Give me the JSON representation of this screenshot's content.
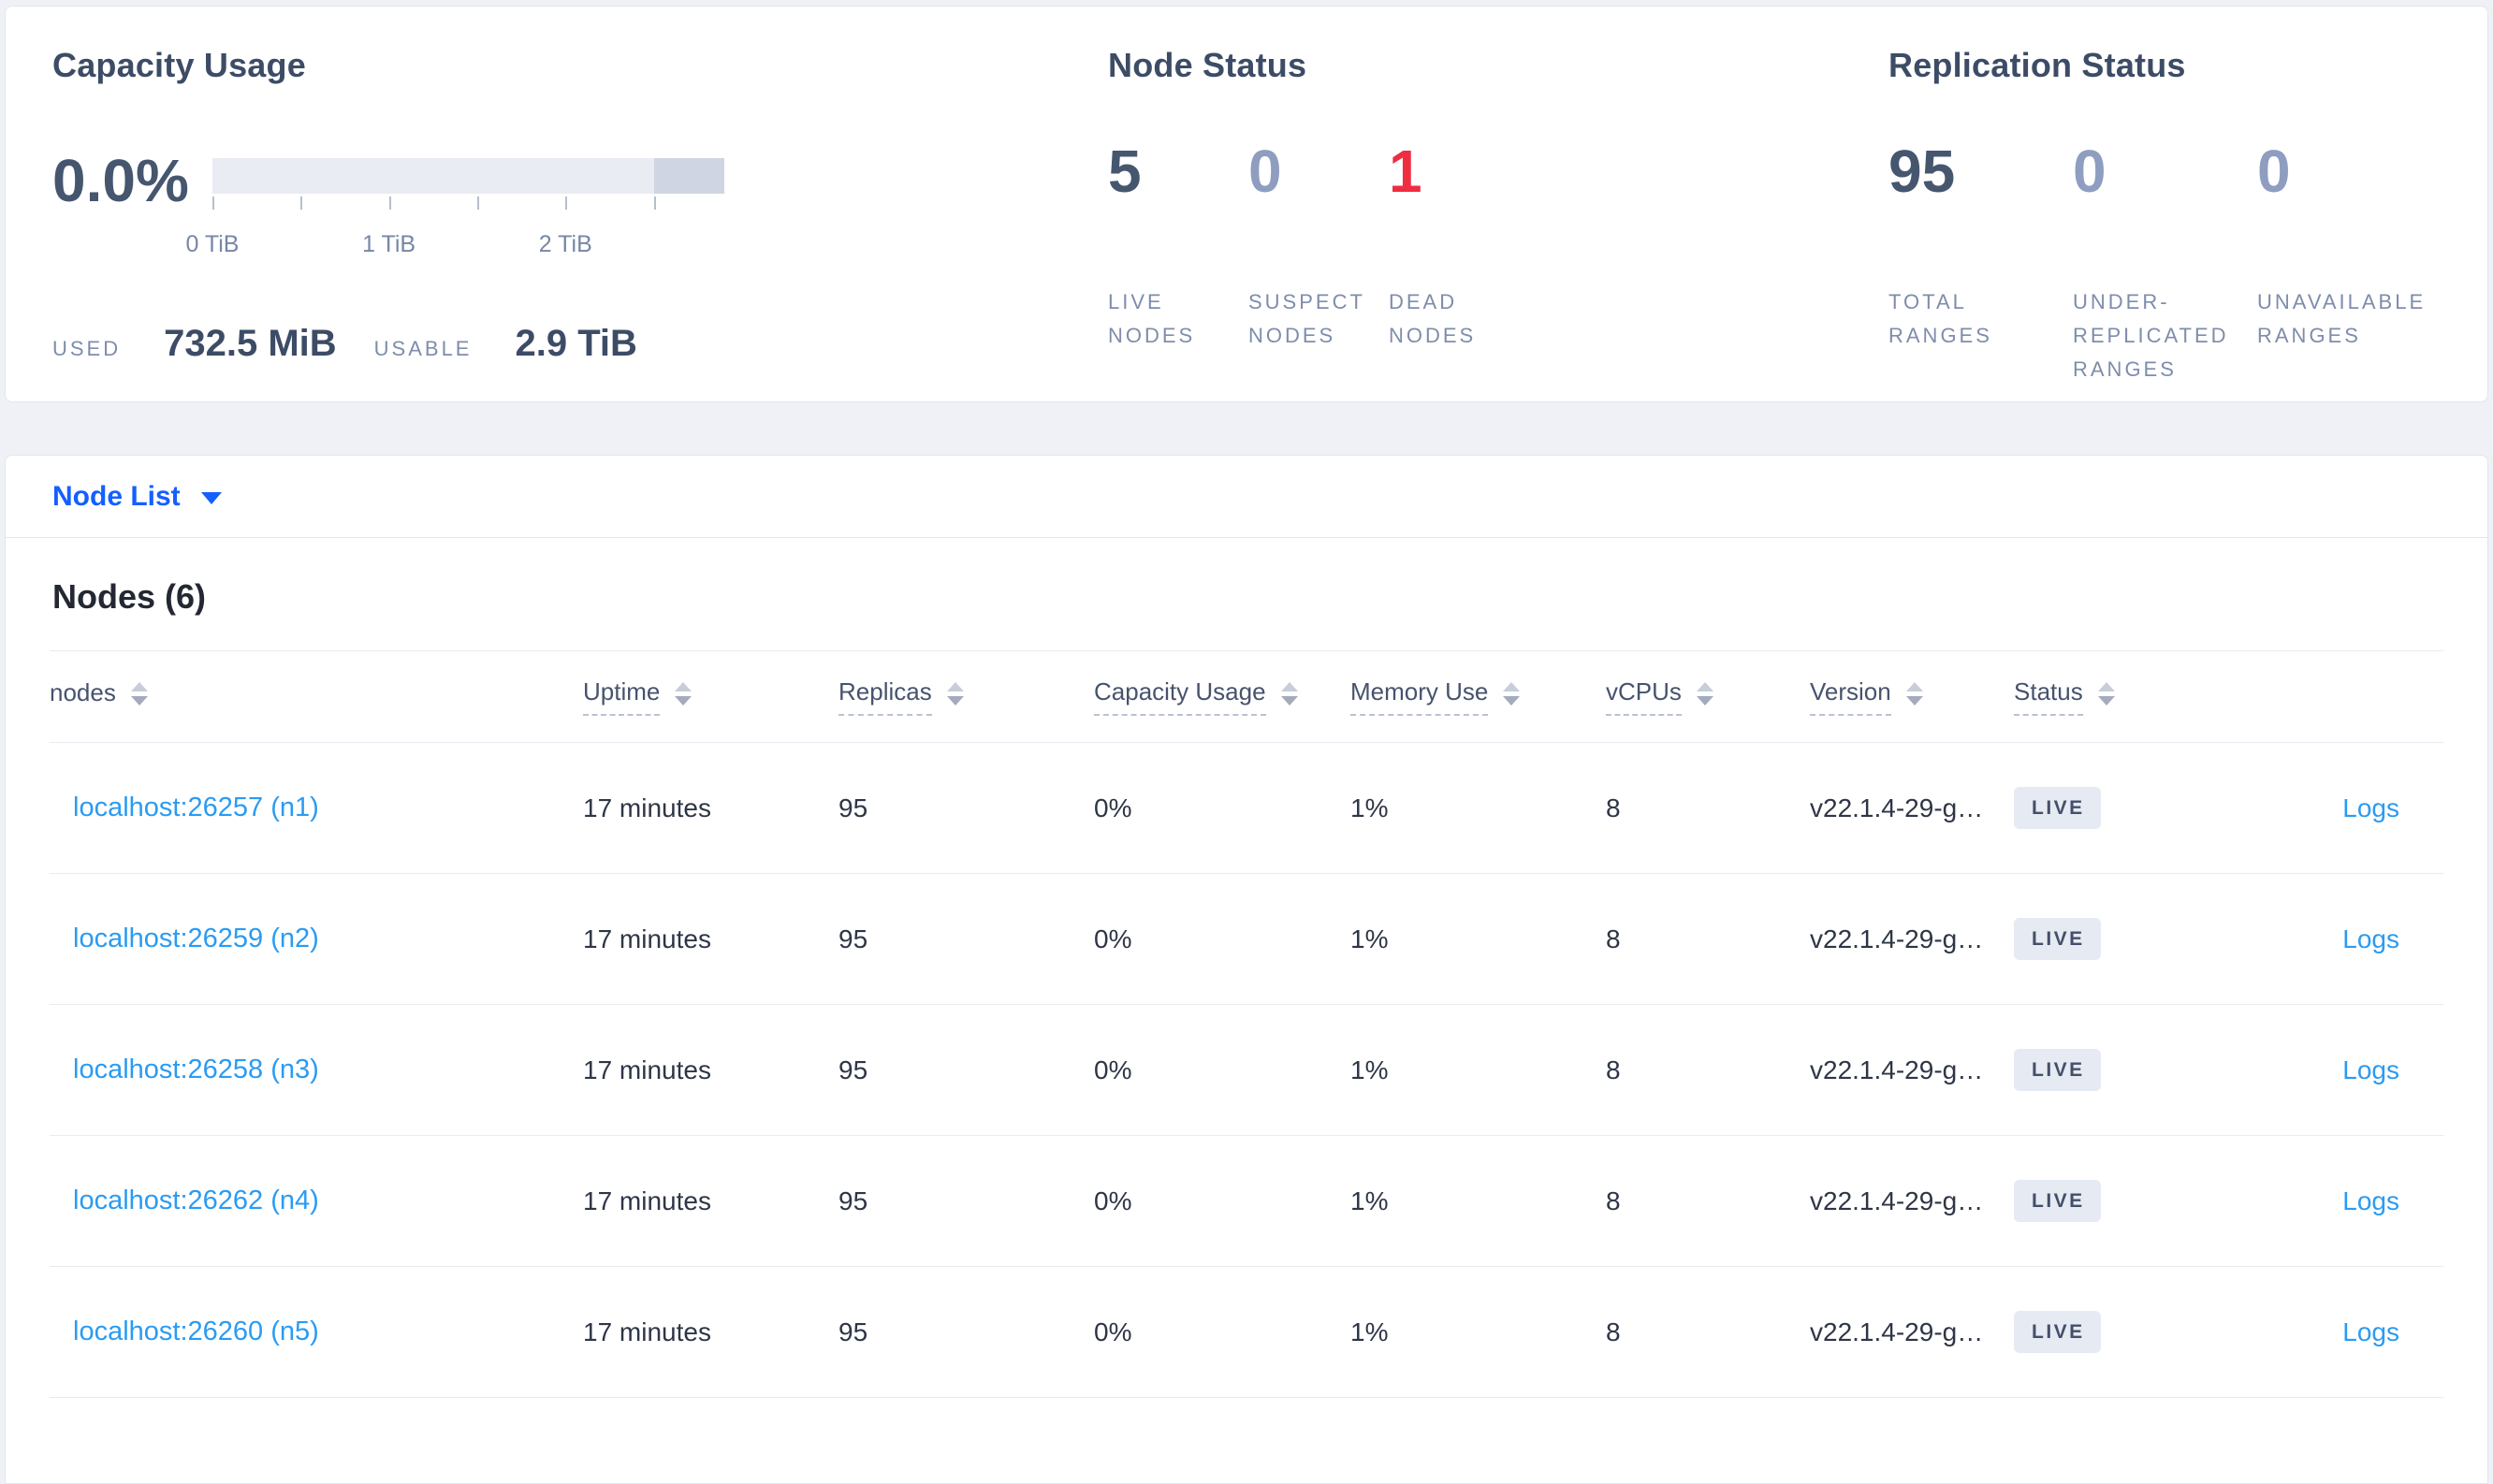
{
  "summary": {
    "capacity": {
      "title": "Capacity Usage",
      "percent": "0.0%",
      "used_label": "USED",
      "used_value": "732.5 MiB",
      "usable_label": "USABLE",
      "usable_value": "2.9 TiB",
      "axis_ticks": [
        {
          "label": "0 TiB",
          "pos": "0%"
        },
        {
          "label": "",
          "pos": "17.24%"
        },
        {
          "label": "1 TiB",
          "pos": "34.48%"
        },
        {
          "label": "",
          "pos": "51.72%"
        },
        {
          "label": "2 TiB",
          "pos": "68.97%"
        },
        {
          "label": "",
          "pos": "86.21%"
        }
      ],
      "bar": {
        "reserved_segment_width": "13.79%",
        "track_color": "#e9ecf3",
        "reserved_color": "#cfd5e2"
      }
    },
    "node_status": {
      "title": "Node Status",
      "stats": [
        {
          "value": "5",
          "label": "LIVE NODES",
          "tone": "dark"
        },
        {
          "value": "0",
          "label": "SUSPECT NODES",
          "tone": "muted"
        },
        {
          "value": "1",
          "label": "DEAD NODES",
          "tone": "danger"
        }
      ]
    },
    "replication": {
      "title": "Replication Status",
      "stats": [
        {
          "value": "95",
          "label": "TOTAL RANGES",
          "tone": "dark"
        },
        {
          "value": "0",
          "label": "UNDER-REPLICATED RANGES",
          "tone": "muted"
        },
        {
          "value": "0",
          "label": "UNAVAILABLE RANGES",
          "tone": "muted"
        }
      ]
    }
  },
  "view_selector": {
    "label": "Node List"
  },
  "nodes_section": {
    "heading": "Nodes (6)",
    "columns": [
      {
        "label": "nodes",
        "underline": false
      },
      {
        "label": "Uptime",
        "underline": true
      },
      {
        "label": "Replicas",
        "underline": true
      },
      {
        "label": "Capacity Usage",
        "underline": true
      },
      {
        "label": "Memory Use",
        "underline": true
      },
      {
        "label": "vCPUs",
        "underline": true
      },
      {
        "label": "Version",
        "underline": true
      },
      {
        "label": "Status",
        "underline": true
      },
      {
        "label": "",
        "underline": false,
        "empty": true
      }
    ],
    "rows": [
      {
        "node": "localhost:26257 (n1)",
        "uptime": "17 minutes",
        "replicas": "95",
        "capacity": "0%",
        "memory": "1%",
        "vcpus": "8",
        "version": "v22.1.4-29-g…",
        "status": "LIVE",
        "logs": "Logs"
      },
      {
        "node": "localhost:26259 (n2)",
        "uptime": "17 minutes",
        "replicas": "95",
        "capacity": "0%",
        "memory": "1%",
        "vcpus": "8",
        "version": "v22.1.4-29-g…",
        "status": "LIVE",
        "logs": "Logs"
      },
      {
        "node": "localhost:26258 (n3)",
        "uptime": "17 minutes",
        "replicas": "95",
        "capacity": "0%",
        "memory": "1%",
        "vcpus": "8",
        "version": "v22.1.4-29-g…",
        "status": "LIVE",
        "logs": "Logs"
      },
      {
        "node": "localhost:26262 (n4)",
        "uptime": "17 minutes",
        "replicas": "95",
        "capacity": "0%",
        "memory": "1%",
        "vcpus": "8",
        "version": "v22.1.4-29-g…",
        "status": "LIVE",
        "logs": "Logs"
      },
      {
        "node": "localhost:26260 (n5)",
        "uptime": "17 minutes",
        "replicas": "95",
        "capacity": "0%",
        "memory": "1%",
        "vcpus": "8",
        "version": "v22.1.4-29-g…",
        "status": "LIVE",
        "logs": "Logs"
      }
    ]
  },
  "colors": {
    "accent_blue": "#155fff",
    "link_blue": "#2a9bf3",
    "danger_red": "#f02c41",
    "slate_dark": "#46566f",
    "slate_muted": "#8e9dc0",
    "badge_bg": "#e6eaf2"
  }
}
